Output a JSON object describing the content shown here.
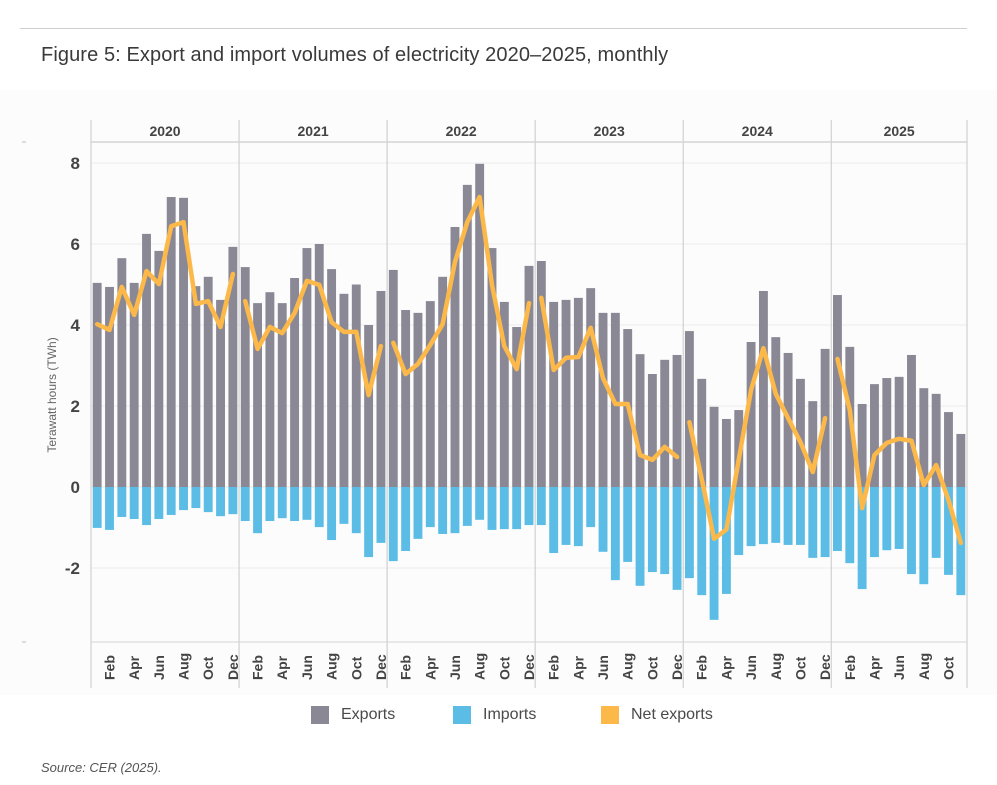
{
  "figure": {
    "title": "Figure 5: Export and import volumes of electricity 2020–2025, monthly",
    "source": "Source: CER (2025)."
  },
  "legend": [
    {
      "label": "Exports",
      "color": "#8a8895"
    },
    {
      "label": "Imports",
      "color": "#5bbde5"
    },
    {
      "label": "Net exports",
      "color": "#fcb94a"
    }
  ],
  "chart_data": {
    "type": "bar",
    "title": "Figure 5: Export and import volumes of electricity 2020–2025, monthly",
    "xlabel": "",
    "ylabel": "Terawatt hours (TWh)",
    "ylim": [
      -3.8,
      8.6
    ],
    "yticks": [
      -2,
      0,
      2,
      4,
      6,
      8
    ],
    "grid": true,
    "legend_position": "bottom",
    "years": [
      "2020",
      "2021",
      "2022",
      "2023",
      "2024",
      "2025"
    ],
    "month_tick_labels": [
      "Feb",
      "Apr",
      "Jun",
      "Aug",
      "Oct",
      "Dec"
    ],
    "months_per_year": [
      12,
      12,
      12,
      12,
      12,
      11
    ],
    "series": [
      {
        "name": "Exports",
        "type": "bar",
        "color": "#8a8895",
        "values": [
          5.04,
          4.94,
          5.65,
          5.04,
          6.25,
          5.83,
          7.16,
          7.14,
          4.96,
          5.19,
          4.62,
          5.93,
          5.43,
          4.54,
          4.81,
          4.54,
          5.16,
          5.9,
          6.0,
          5.38,
          4.77,
          5.0,
          4.0,
          4.84,
          5.36,
          4.37,
          4.3,
          4.59,
          5.19,
          6.42,
          7.46,
          7.98,
          5.9,
          4.57,
          3.95,
          5.46,
          5.58,
          4.57,
          4.62,
          4.67,
          4.91,
          4.3,
          4.3,
          3.9,
          3.28,
          2.79,
          3.14,
          3.26,
          3.85,
          2.67,
          1.98,
          1.68,
          1.9,
          3.58,
          4.84,
          3.7,
          3.31,
          2.67,
          2.12,
          3.41,
          4.74,
          3.46,
          2.05,
          2.54,
          2.69,
          2.72,
          3.26,
          2.44,
          2.3,
          1.85,
          1.31
        ]
      },
      {
        "name": "Imports",
        "type": "bar",
        "color": "#5bbde5",
        "values": [
          -1.01,
          -1.06,
          -0.74,
          -0.79,
          -0.94,
          -0.79,
          -0.69,
          -0.57,
          -0.52,
          -0.62,
          -0.72,
          -0.67,
          -0.84,
          -1.14,
          -0.84,
          -0.77,
          -0.84,
          -0.81,
          -0.99,
          -1.31,
          -0.91,
          -1.14,
          -1.73,
          -1.38,
          -1.83,
          -1.58,
          -1.28,
          -0.99,
          -1.16,
          -1.14,
          -0.96,
          -0.81,
          -1.06,
          -1.04,
          -1.04,
          -0.94,
          -0.94,
          -1.63,
          -1.43,
          -1.46,
          -0.99,
          -1.6,
          -2.3,
          -1.85,
          -2.44,
          -2.1,
          -2.15,
          -2.54,
          -2.25,
          -2.67,
          -3.28,
          -2.64,
          -1.68,
          -1.46,
          -1.41,
          -1.38,
          -1.43,
          -1.43,
          -1.75,
          -1.73,
          -1.58,
          -1.88,
          -2.52,
          -1.73,
          -1.56,
          -1.53,
          -2.15,
          -2.4,
          -1.75,
          -2.17,
          -2.67
        ]
      },
      {
        "name": "Net exports",
        "type": "line",
        "color": "#fcb94a",
        "values": [
          4.02,
          3.88,
          4.94,
          4.25,
          5.33,
          5.01,
          6.44,
          6.54,
          4.52,
          4.59,
          3.95,
          5.26,
          4.59,
          3.41,
          3.95,
          3.8,
          4.3,
          5.09,
          4.99,
          4.07,
          3.83,
          3.83,
          2.27,
          3.48,
          3.56,
          2.79,
          3.04,
          3.51,
          4.02,
          5.56,
          6.54,
          7.16,
          4.99,
          3.48,
          2.91,
          4.54,
          4.67,
          2.89,
          3.19,
          3.21,
          3.93,
          2.69,
          2.05,
          2.05,
          0.79,
          0.67,
          0.99,
          0.74,
          1.6,
          0.2,
          -1.28,
          -1.05,
          0.67,
          2.4,
          3.43,
          2.3,
          1.7,
          1.11,
          0.37,
          1.7,
          3.16,
          1.9,
          -0.52,
          0.79,
          1.09,
          1.19,
          1.14,
          0.05,
          0.54,
          -0.32,
          -1.38
        ]
      }
    ]
  }
}
